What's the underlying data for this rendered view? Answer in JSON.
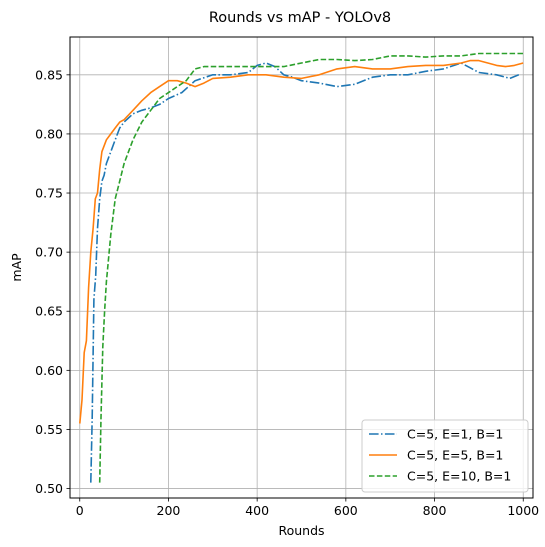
{
  "chart_data": {
    "type": "line",
    "title": "Rounds vs mAP - YOLOv8",
    "xlabel": "Rounds",
    "ylabel": "mAP",
    "xlim": [
      -22,
      1022
    ],
    "ylim": [
      0.492,
      0.882
    ],
    "xticks": [
      0,
      200,
      400,
      600,
      800,
      1000
    ],
    "yticks": [
      0.5,
      0.55,
      0.6,
      0.65,
      0.7,
      0.75,
      0.8,
      0.85
    ],
    "ytick_labels": [
      "0.50",
      "0.55",
      "0.60",
      "0.65",
      "0.70",
      "0.75",
      "0.80",
      "0.85"
    ],
    "grid": true,
    "legend_position": "lower-right",
    "series": [
      {
        "name": "C=5, E=1, B=1",
        "color": "#1f77b4",
        "linestyle": "dashdot",
        "x": [
          25,
          28,
          32,
          36,
          40,
          45,
          50,
          55,
          60,
          70,
          80,
          90,
          100,
          120,
          140,
          160,
          180,
          200,
          230,
          260,
          300,
          340,
          380,
          400,
          420,
          440,
          460,
          480,
          500,
          540,
          580,
          620,
          660,
          700,
          740,
          780,
          820,
          860,
          880,
          900,
          940,
          970,
          990
        ],
        "y": [
          0.505,
          0.56,
          0.66,
          0.68,
          0.72,
          0.745,
          0.76,
          0.765,
          0.775,
          0.785,
          0.795,
          0.805,
          0.81,
          0.817,
          0.82,
          0.822,
          0.825,
          0.83,
          0.835,
          0.845,
          0.85,
          0.85,
          0.852,
          0.858,
          0.86,
          0.857,
          0.85,
          0.848,
          0.845,
          0.843,
          0.84,
          0.842,
          0.848,
          0.85,
          0.85,
          0.853,
          0.855,
          0.86,
          0.856,
          0.852,
          0.85,
          0.847,
          0.85
        ]
      },
      {
        "name": "C=5, E=5, B=1",
        "color": "#ff7f0e",
        "linestyle": "solid",
        "x": [
          0,
          5,
          10,
          15,
          20,
          25,
          30,
          35,
          40,
          45,
          50,
          60,
          70,
          80,
          90,
          100,
          120,
          140,
          160,
          180,
          200,
          220,
          240,
          260,
          280,
          300,
          340,
          380,
          420,
          460,
          500,
          540,
          580,
          620,
          660,
          700,
          740,
          780,
          820,
          860,
          880,
          900,
          920,
          940,
          960,
          980,
          1000
        ],
        "y": [
          0.555,
          0.575,
          0.615,
          0.625,
          0.67,
          0.7,
          0.72,
          0.745,
          0.75,
          0.77,
          0.785,
          0.795,
          0.8,
          0.805,
          0.81,
          0.812,
          0.82,
          0.828,
          0.835,
          0.84,
          0.845,
          0.845,
          0.843,
          0.84,
          0.843,
          0.847,
          0.848,
          0.85,
          0.85,
          0.848,
          0.847,
          0.85,
          0.855,
          0.857,
          0.855,
          0.855,
          0.857,
          0.858,
          0.858,
          0.86,
          0.862,
          0.862,
          0.86,
          0.858,
          0.857,
          0.858,
          0.86
        ]
      },
      {
        "name": "C=5, E=10, B=1",
        "color": "#2ca02c",
        "linestyle": "dashed",
        "x": [
          45,
          48,
          52,
          56,
          60,
          65,
          70,
          75,
          80,
          90,
          100,
          120,
          140,
          160,
          180,
          200,
          220,
          240,
          260,
          280,
          300,
          340,
          380,
          420,
          460,
          500,
          540,
          580,
          620,
          660,
          700,
          740,
          780,
          820,
          860,
          900,
          940,
          980,
          1000
        ],
        "y": [
          0.505,
          0.56,
          0.62,
          0.65,
          0.675,
          0.695,
          0.715,
          0.73,
          0.745,
          0.76,
          0.775,
          0.795,
          0.81,
          0.82,
          0.83,
          0.835,
          0.84,
          0.845,
          0.855,
          0.857,
          0.857,
          0.857,
          0.857,
          0.857,
          0.857,
          0.86,
          0.863,
          0.863,
          0.862,
          0.863,
          0.866,
          0.866,
          0.865,
          0.866,
          0.866,
          0.868,
          0.868,
          0.868,
          0.868
        ]
      }
    ]
  }
}
